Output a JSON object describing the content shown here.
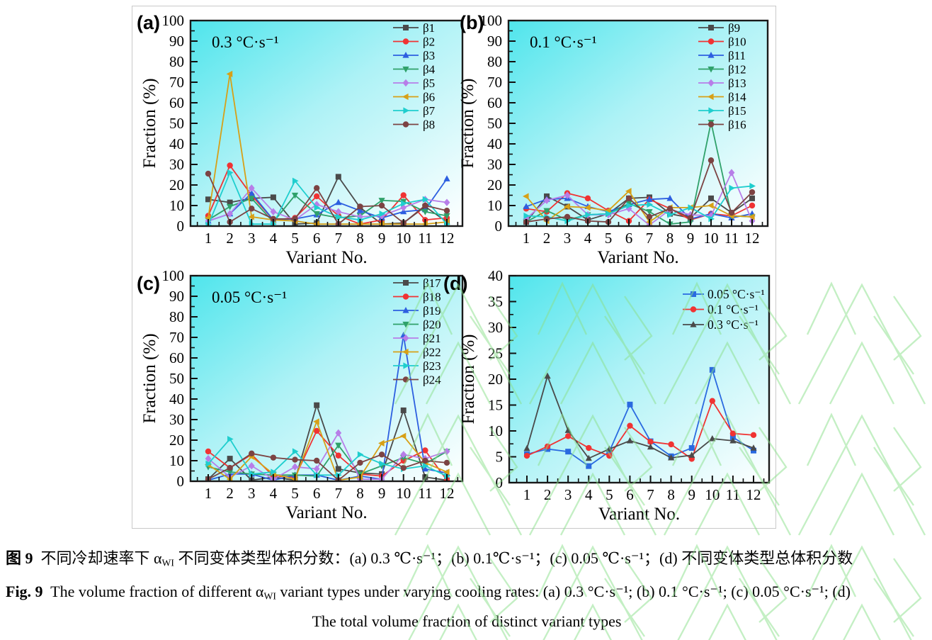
{
  "style": {
    "bg_gradient": [
      "#4fe5ec",
      "#aef2f6",
      "#feffff"
    ],
    "frame_color": "#1a1a1a",
    "watermark_green": "#8be08b",
    "figure_border": "#c9c9c9"
  },
  "chart_data": [
    {
      "id": "a",
      "type": "line",
      "panel_label": "(a)",
      "annotation": "0.3 °C·s⁻¹",
      "xlabel": "Variant No.",
      "ylabel": "Fraction (%)",
      "ylim": [
        0,
        100
      ],
      "ystep": 10,
      "legend_position": "top-right-inside",
      "categories": [
        1,
        2,
        3,
        4,
        5,
        6,
        7,
        8,
        9,
        10,
        11,
        12
      ],
      "series": [
        {
          "name": "β1",
          "color": "#4a4a4a",
          "marker": "square",
          "values": [
            13,
            11.5,
            13.5,
            14,
            1,
            1.5,
            24,
            9,
            1,
            1.5,
            9.5,
            2
          ]
        },
        {
          "name": "β2",
          "color": "#f03333",
          "marker": "circle",
          "values": [
            5,
            29.5,
            15,
            3,
            4,
            14.5,
            5,
            1,
            3,
            15,
            3,
            4
          ]
        },
        {
          "name": "β3",
          "color": "#2d5fe0",
          "marker": "triangle-up",
          "values": [
            2.5,
            6,
            16,
            3,
            3.5,
            5.5,
            11.5,
            7.5,
            4,
            7,
            8,
            23
          ]
        },
        {
          "name": "β4",
          "color": "#2fa16a",
          "marker": "triangle-down",
          "values": [
            3,
            9.5,
            13.5,
            2,
            15,
            6,
            4,
            5,
            12.5,
            12,
            7,
            5
          ]
        },
        {
          "name": "β5",
          "color": "#b77ee8",
          "marker": "diamond",
          "values": [
            2.5,
            6,
            18.5,
            7,
            3,
            10.5,
            7,
            4.5,
            5,
            9,
            13,
            11.5
          ]
        },
        {
          "name": "β6",
          "color": "#d7a017",
          "marker": "triangle-left",
          "values": [
            4,
            74,
            4.5,
            3,
            2.5,
            1,
            1,
            1,
            1,
            1,
            1,
            2
          ]
        },
        {
          "name": "β7",
          "color": "#1fcece",
          "marker": "triangle-right",
          "values": [
            0.5,
            26,
            1,
            1,
            22,
            9,
            4.5,
            3,
            6,
            11,
            13,
            1
          ]
        },
        {
          "name": "β8",
          "color": "#7c4343",
          "marker": "circle",
          "values": [
            25.5,
            2,
            8.5,
            3.5,
            3.5,
            18.5,
            1,
            9.5,
            10,
            1.5,
            10,
            7.5
          ]
        }
      ]
    },
    {
      "id": "b",
      "type": "line",
      "panel_label": "(b)",
      "annotation": "0.1 °C·s⁻¹",
      "xlabel": "Variant No.",
      "ylabel": "Fraction (%)",
      "ylim": [
        0,
        100
      ],
      "ystep": 10,
      "legend_position": "top-right-inside",
      "categories": [
        1,
        2,
        3,
        4,
        5,
        6,
        7,
        8,
        9,
        10,
        11,
        12
      ],
      "series": [
        {
          "name": "β9",
          "color": "#4a4a4a",
          "marker": "square",
          "values": [
            2,
            14.5,
            9.5,
            3,
            6,
            13.5,
            14,
            6,
            4,
            13.5,
            6.5,
            13.5
          ]
        },
        {
          "name": "β10",
          "color": "#f03333",
          "marker": "circle",
          "values": [
            8.5,
            7,
            16,
            13.5,
            7.5,
            2.5,
            13,
            8.5,
            3,
            6,
            5,
            10
          ]
        },
        {
          "name": "β11",
          "color": "#2d5fe0",
          "marker": "triangle-up",
          "values": [
            9.5,
            13,
            13.5,
            9.5,
            7,
            10.5,
            13,
            13.5,
            3.5,
            6,
            4,
            6
          ]
        },
        {
          "name": "β12",
          "color": "#2fa16a",
          "marker": "triangle-down",
          "values": [
            2,
            7.5,
            3,
            5.5,
            6,
            11,
            7,
            1,
            2,
            50.5,
            5,
            4.5
          ]
        },
        {
          "name": "β13",
          "color": "#b77ee8",
          "marker": "diamond",
          "values": [
            3.5,
            12.5,
            15,
            5.5,
            5.5,
            8.5,
            0.5,
            8,
            5.5,
            5,
            26,
            2.5
          ]
        },
        {
          "name": "β14",
          "color": "#d7a017",
          "marker": "triangle-left",
          "values": [
            14.5,
            2.5,
            9.5,
            9,
            7.5,
            17,
            2,
            9,
            9,
            10,
            5,
            4.5
          ]
        },
        {
          "name": "β15",
          "color": "#1fcece",
          "marker": "triangle-right",
          "values": [
            5,
            4.5,
            2.5,
            5.5,
            6,
            10,
            10.5,
            5.5,
            9,
            3.5,
            18.5,
            19.5
          ]
        },
        {
          "name": "β16",
          "color": "#7c4343",
          "marker": "circle",
          "values": [
            2,
            3.5,
            4.5,
            2.5,
            2,
            13.5,
            4.5,
            8.5,
            4,
            32,
            6.5,
            16.5
          ]
        }
      ]
    },
    {
      "id": "c",
      "type": "line",
      "panel_label": "(c)",
      "annotation": "0.05 °C·s⁻¹",
      "xlabel": "Variant No.",
      "ylabel": "Fraction (%)",
      "ylim": [
        0,
        100
      ],
      "ystep": 10,
      "legend_position": "top-right-inside",
      "categories": [
        1,
        2,
        3,
        4,
        5,
        6,
        7,
        8,
        9,
        10,
        11,
        12
      ],
      "series": [
        {
          "name": "β17",
          "color": "#4a4a4a",
          "marker": "square",
          "values": [
            1,
            11,
            0.5,
            2,
            0.5,
            37,
            6,
            4,
            3.5,
            34.5,
            2,
            0.5
          ]
        },
        {
          "name": "β18",
          "color": "#f03333",
          "marker": "circle",
          "values": [
            14.5,
            6.5,
            13,
            2.5,
            2,
            24.5,
            12.5,
            3.5,
            2.5,
            10,
            15,
            0.5
          ]
        },
        {
          "name": "β19",
          "color": "#2d5fe0",
          "marker": "triangle-up",
          "values": [
            0.5,
            3.5,
            3.5,
            0.5,
            3,
            3,
            0.5,
            2.5,
            1,
            71,
            6,
            4
          ]
        },
        {
          "name": "β20",
          "color": "#2fa16a",
          "marker": "triangle-down",
          "values": [
            7,
            4.5,
            3.5,
            3,
            3,
            2.5,
            17.5,
            3.5,
            7.5,
            11.5,
            8.5,
            14.5
          ]
        },
        {
          "name": "β21",
          "color": "#b77ee8",
          "marker": "diamond",
          "values": [
            11,
            2,
            7.5,
            1,
            7,
            6,
            23.5,
            1,
            1,
            13,
            11,
            14.5
          ]
        },
        {
          "name": "β22",
          "color": "#d7a017",
          "marker": "triangle-left",
          "values": [
            8,
            1,
            12,
            3.5,
            1,
            29,
            0.5,
            2,
            18.5,
            22,
            9,
            4.5
          ]
        },
        {
          "name": "β23",
          "color": "#1fcece",
          "marker": "triangle-right",
          "values": [
            8.5,
            20.5,
            3.5,
            4.5,
            14.5,
            3,
            3,
            13,
            8.5,
            6,
            7.5,
            2.5
          ]
        },
        {
          "name": "β24",
          "color": "#7c4343",
          "marker": "circle",
          "values": [
            1,
            6.5,
            13.5,
            11.5,
            10.5,
            10,
            0.5,
            9,
            13,
            6.5,
            10,
            9
          ]
        }
      ]
    },
    {
      "id": "d",
      "type": "line",
      "panel_label": "(d)",
      "annotation": "",
      "xlabel": "Variant No.",
      "ylabel": "Fraction (%)",
      "ylim": [
        0,
        40
      ],
      "ystep": 5,
      "legend_position": "top-right-inside",
      "categories": [
        1,
        2,
        3,
        4,
        5,
        6,
        7,
        8,
        9,
        10,
        11,
        12
      ],
      "series": [
        {
          "name": "0.05 °C·s⁻¹",
          "color": "#2a6ae0",
          "marker": "square",
          "values": [
            5.5,
            6.5,
            6,
            3.2,
            6,
            15.1,
            8,
            5.1,
            6.7,
            21.8,
            8.8,
            6.2
          ]
        },
        {
          "name": "0.1 °C·s⁻¹",
          "color": "#f03333",
          "marker": "circle",
          "values": [
            5.2,
            7,
            9,
            6.7,
            5.2,
            11,
            7.9,
            7.4,
            4.6,
            15.8,
            9.5,
            9.2
          ]
        },
        {
          "name": "0.3 °C·s⁻¹",
          "color": "#4a4a4a",
          "marker": "triangle-up",
          "values": [
            6.6,
            20.6,
            10.1,
            4.7,
            6.5,
            8.1,
            6.9,
            4.8,
            5.3,
            8.5,
            8.1,
            6.7
          ]
        }
      ]
    }
  ],
  "captions": {
    "cn": {
      "label": "图 9",
      "text1": "  不同冷却速率下 α",
      "sub": "WI",
      "text2": " 不同变体类型体积分数：(a) 0.3 ℃·s⁻¹；(b) 0.1℃·s⁻¹；(c) 0.05 ℃·s⁻¹；(d) 不同变体类型总体积分数"
    },
    "en": {
      "label": "Fig. 9",
      "text1": "  The volume fraction of different α",
      "sub": "WI",
      "text2": " variant types under varying cooling rates: (a) 0.3 °C·s⁻¹; (b) 0.1 °C·s⁻¹; (c) 0.05 °C·s⁻¹; (d)",
      "line2": "The total volume fraction of distinct variant types"
    }
  }
}
